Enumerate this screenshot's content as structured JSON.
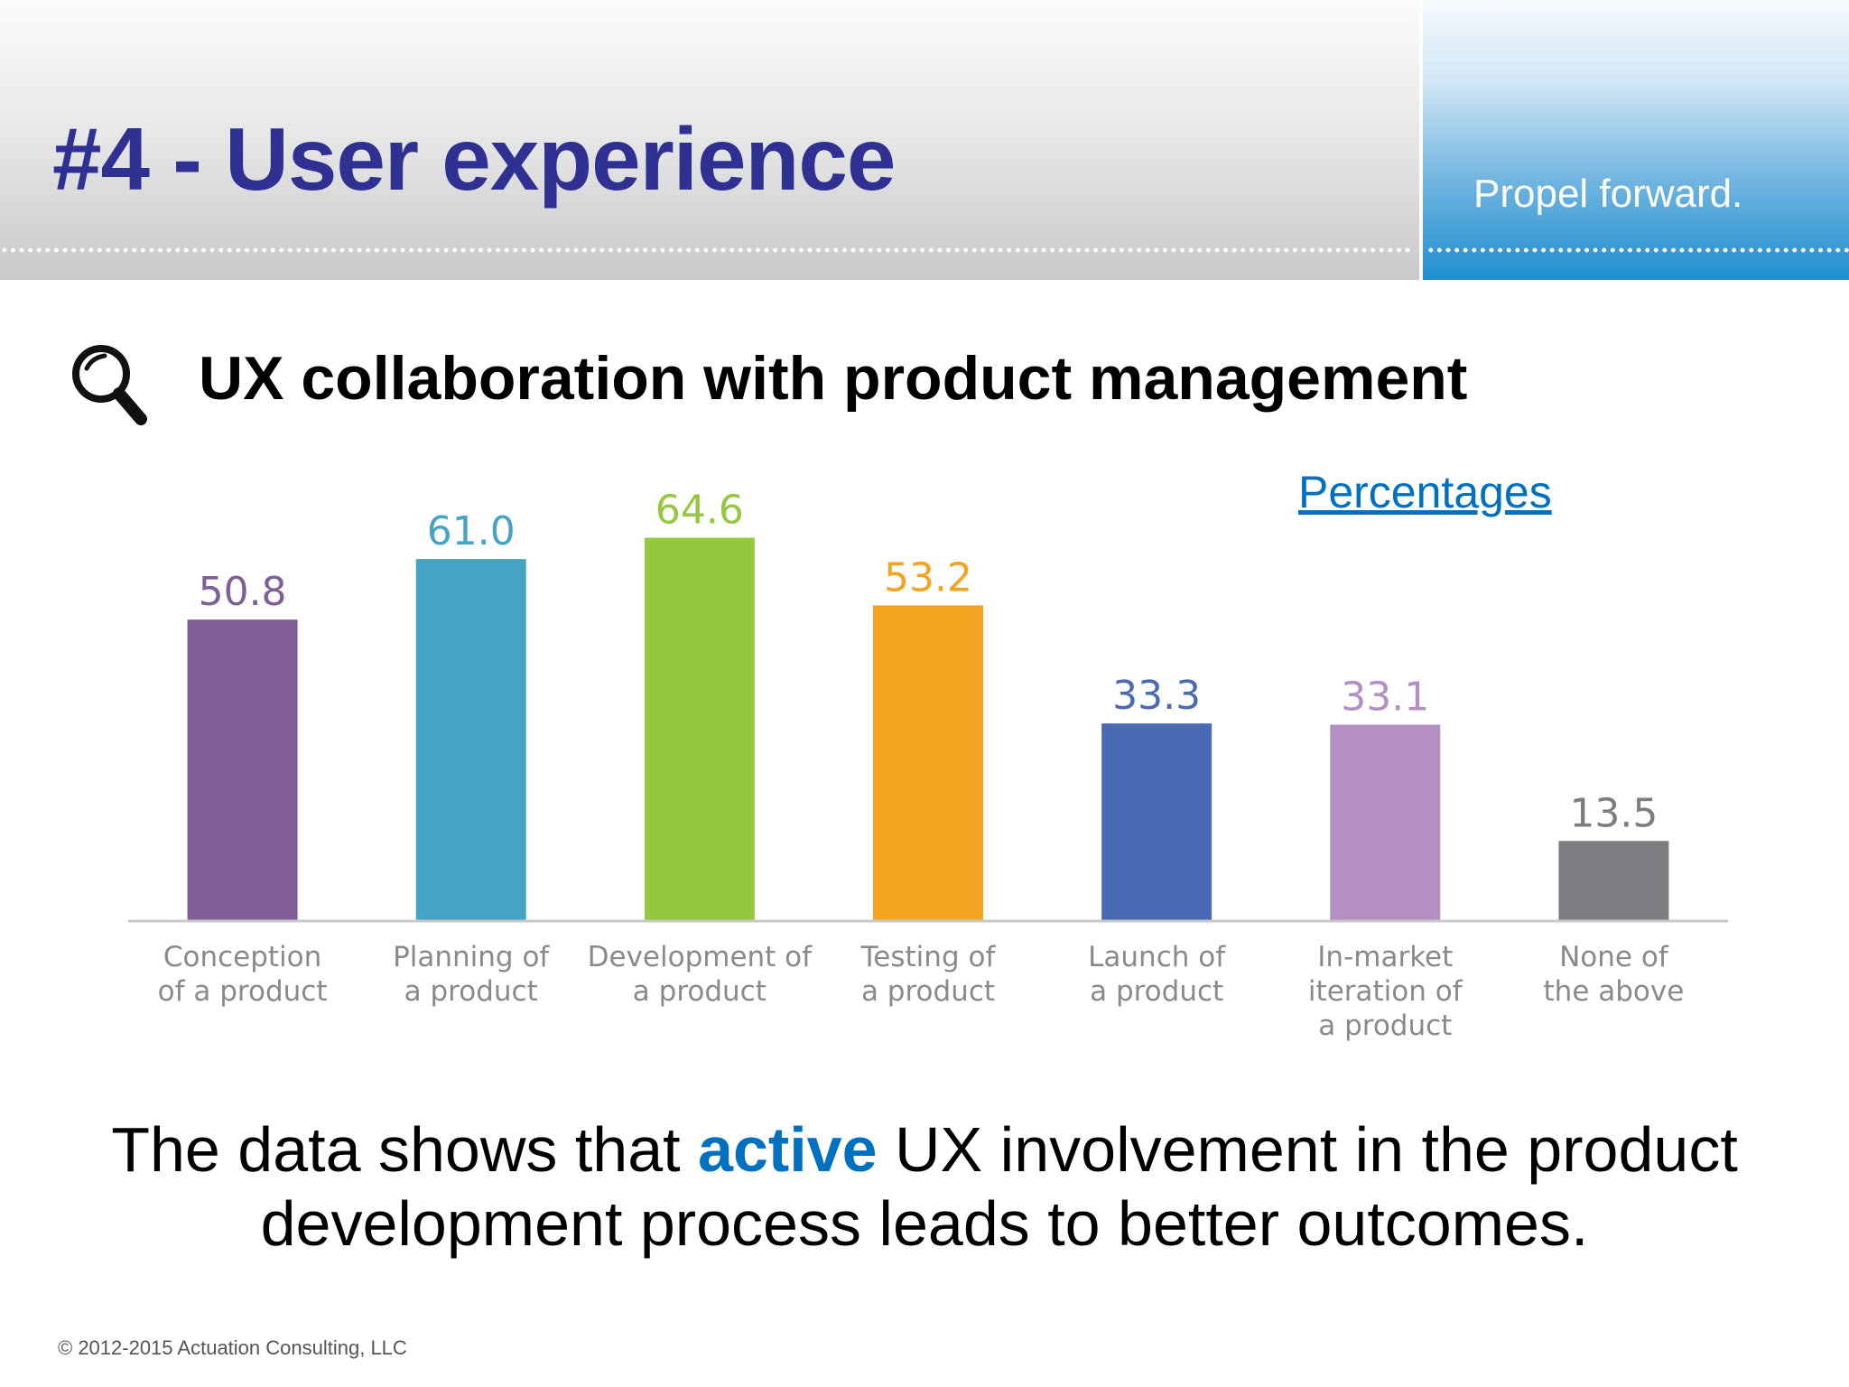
{
  "header": {
    "title": "#4 - User experience",
    "tagline": "Propel forward."
  },
  "section": {
    "icon": "magnifier-icon",
    "subtitle": "UX collaboration with product management",
    "units_label": "Percentages"
  },
  "chart_data": {
    "type": "bar",
    "categories": [
      [
        "Conception",
        "of a product"
      ],
      [
        "Planning of",
        "a product"
      ],
      [
        "Development of",
        "a product"
      ],
      [
        "Testing of",
        "a product"
      ],
      [
        "Launch of",
        "a product"
      ],
      [
        "In-market",
        "iteration of",
        "a product"
      ],
      [
        "None of",
        "the above"
      ]
    ],
    "values": [
      50.8,
      61.0,
      64.6,
      53.2,
      33.3,
      33.1,
      13.5
    ],
    "value_labels": [
      "50.8",
      "61.0",
      "64.6",
      "53.2",
      "33.3",
      "33.1",
      "13.5"
    ],
    "colors": [
      "#7f5f96",
      "#45a3c6",
      "#93c83f",
      "#f3a31f",
      "#4a6ab3",
      "#b48fc2",
      "#7d7c81"
    ],
    "ylim": [
      0,
      70
    ],
    "grid": false,
    "legend": "none"
  },
  "conclusion": {
    "before": "The data shows that ",
    "emphasis": "active",
    "after": " UX involvement in the product development process leads to better outcomes."
  },
  "footer": {
    "copyright": "© 2012-2015 Actuation Consulting, LLC"
  }
}
